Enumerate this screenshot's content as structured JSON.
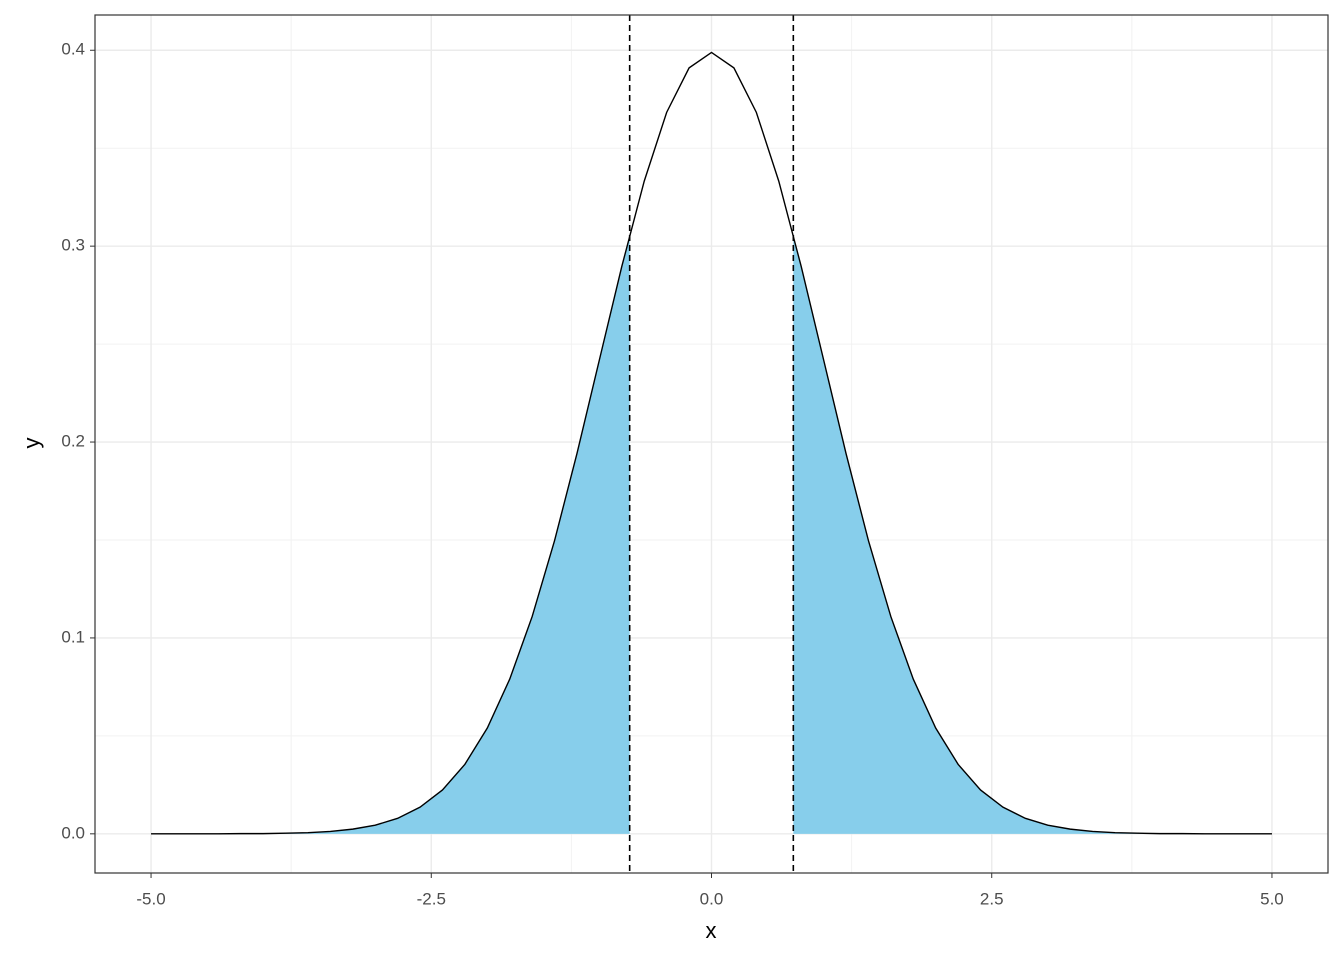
{
  "chart_data": {
    "type": "area",
    "x_label": "x",
    "y_label": "y",
    "xlim": [
      -5.5,
      5.5
    ],
    "ylim": [
      -0.02,
      0.418
    ],
    "xticks": [
      {
        "value": -5,
        "label": "-5.0"
      },
      -2.5,
      {
        "value": 0,
        "label": "0.0"
      },
      2.5,
      {
        "value": 5,
        "label": "5.0"
      }
    ],
    "yticks": [
      {
        "value": 0,
        "label": "0.0"
      },
      0.1,
      0.2,
      0.3,
      0.4
    ],
    "minor_xticks": [
      -3.75,
      -1.25,
      1.25,
      3.75
    ],
    "minor_yticks": [
      0.05,
      0.15,
      0.25,
      0.35
    ],
    "grid": true,
    "curve": {
      "color": "#000000",
      "x": [
        -5,
        -4.8,
        -4.6,
        -4.4,
        -4.2,
        -4,
        -3.8,
        -3.6,
        -3.4,
        -3.2,
        -3,
        -2.8,
        -2.6,
        -2.4,
        -2.2,
        -2,
        -1.8,
        -1.6,
        -1.4,
        -1.2,
        -1,
        -0.8,
        -0.6,
        -0.4,
        -0.2,
        0,
        0.2,
        0.4,
        0.6,
        0.8,
        1,
        1.2,
        1.4,
        1.6,
        1.8,
        2,
        2.2,
        2.4,
        2.6,
        2.8,
        3,
        3.2,
        3.4,
        3.6,
        3.8,
        4,
        4.2,
        4.4,
        4.6,
        4.8,
        5
      ],
      "values": [
        0,
        0,
        0,
        0,
        0.0001,
        0.0001,
        0.0003,
        0.0006,
        0.0012,
        0.0024,
        0.0044,
        0.0079,
        0.0136,
        0.0224,
        0.0355,
        0.054,
        0.079,
        0.1109,
        0.1497,
        0.1942,
        0.242,
        0.2897,
        0.3332,
        0.3683,
        0.391,
        0.3989,
        0.391,
        0.3683,
        0.3332,
        0.2897,
        0.242,
        0.1942,
        0.1497,
        0.1109,
        0.079,
        0.054,
        0.0355,
        0.0224,
        0.0136,
        0.0079,
        0.0044,
        0.0024,
        0.0012,
        0.0006,
        0.0003,
        0.0001,
        0.0001,
        0,
        0,
        0,
        0
      ]
    },
    "shaded": [
      {
        "color": "#87ceeb",
        "x": [
          -5,
          -4.8,
          -4.6,
          -4.4,
          -4.2,
          -4,
          -3.8,
          -3.6,
          -3.4,
          -3.2,
          -3,
          -2.8,
          -2.6,
          -2.4,
          -2.2,
          -2,
          -1.8,
          -1.6,
          -1.4,
          -1.2,
          -1,
          -0.8,
          -0.73
        ],
        "values": [
          0,
          0,
          0,
          0,
          0.0001,
          0.0001,
          0.0003,
          0.0006,
          0.0012,
          0.0024,
          0.0044,
          0.0079,
          0.0136,
          0.0224,
          0.0355,
          0.054,
          0.079,
          0.1109,
          0.1497,
          0.1942,
          0.242,
          0.2897,
          0.3056
        ]
      },
      {
        "color": "#87ceeb",
        "x": [
          0.73,
          0.8,
          1,
          1.2,
          1.4,
          1.6,
          1.8,
          2,
          2.2,
          2.4,
          2.6,
          2.8,
          3,
          3.2,
          3.4,
          3.6,
          3.8,
          4,
          4.2,
          4.4,
          4.6,
          4.8,
          5
        ],
        "values": [
          0.3056,
          0.2897,
          0.242,
          0.1942,
          0.1497,
          0.1109,
          0.079,
          0.054,
          0.0355,
          0.0224,
          0.0136,
          0.0079,
          0.0044,
          0.0024,
          0.0012,
          0.0006,
          0.0003,
          0.0001,
          0.0001,
          0,
          0,
          0,
          0
        ]
      }
    ],
    "vlines": {
      "values": [
        -0.73,
        0.73
      ],
      "color": "#000000",
      "dashed": true
    }
  }
}
